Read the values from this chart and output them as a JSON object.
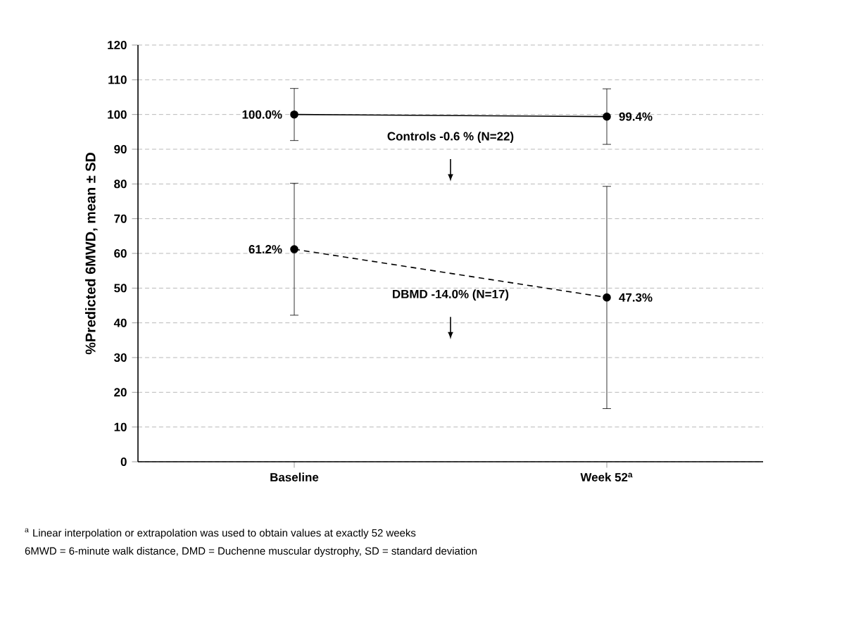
{
  "chart_data": {
    "type": "line",
    "ylabel": "%Predicted 6MWD, mean ± SD",
    "categories": [
      "Baseline",
      "Week 52$^{a}$"
    ],
    "series": [
      {
        "name": "Controls  -0.6 % (N=22)",
        "color": "#000000",
        "values": [
          100.0,
          99.4
        ],
        "errors": [
          7.5,
          8
        ],
        "value_labels": [
          "100.0%",
          "99.4%"
        ],
        "line_style": "solid"
      },
      {
        "name": "DBMD  -14.0% (N=17)",
        "color": "#000000",
        "values": [
          61.2,
          47.3
        ],
        "errors": [
          19,
          32
        ],
        "value_labels": [
          "61.2%",
          "47.3%"
        ],
        "line_style": "dashed"
      }
    ],
    "ylim": [
      0,
      120
    ],
    "yticks": [
      0,
      10,
      20,
      30,
      40,
      50,
      60,
      70,
      80,
      90,
      100,
      110,
      120
    ],
    "grid": "y",
    "legend": false,
    "marker": "circle",
    "annotations": [
      "$^{a}$     Linear interpolation or extrapolation was used to obtain values at exactly 52 weeks",
      "6MWD = 6-minute walk distance, DMD = Duchenne muscular dystrophy, SD = standard deviation"
    ]
  }
}
